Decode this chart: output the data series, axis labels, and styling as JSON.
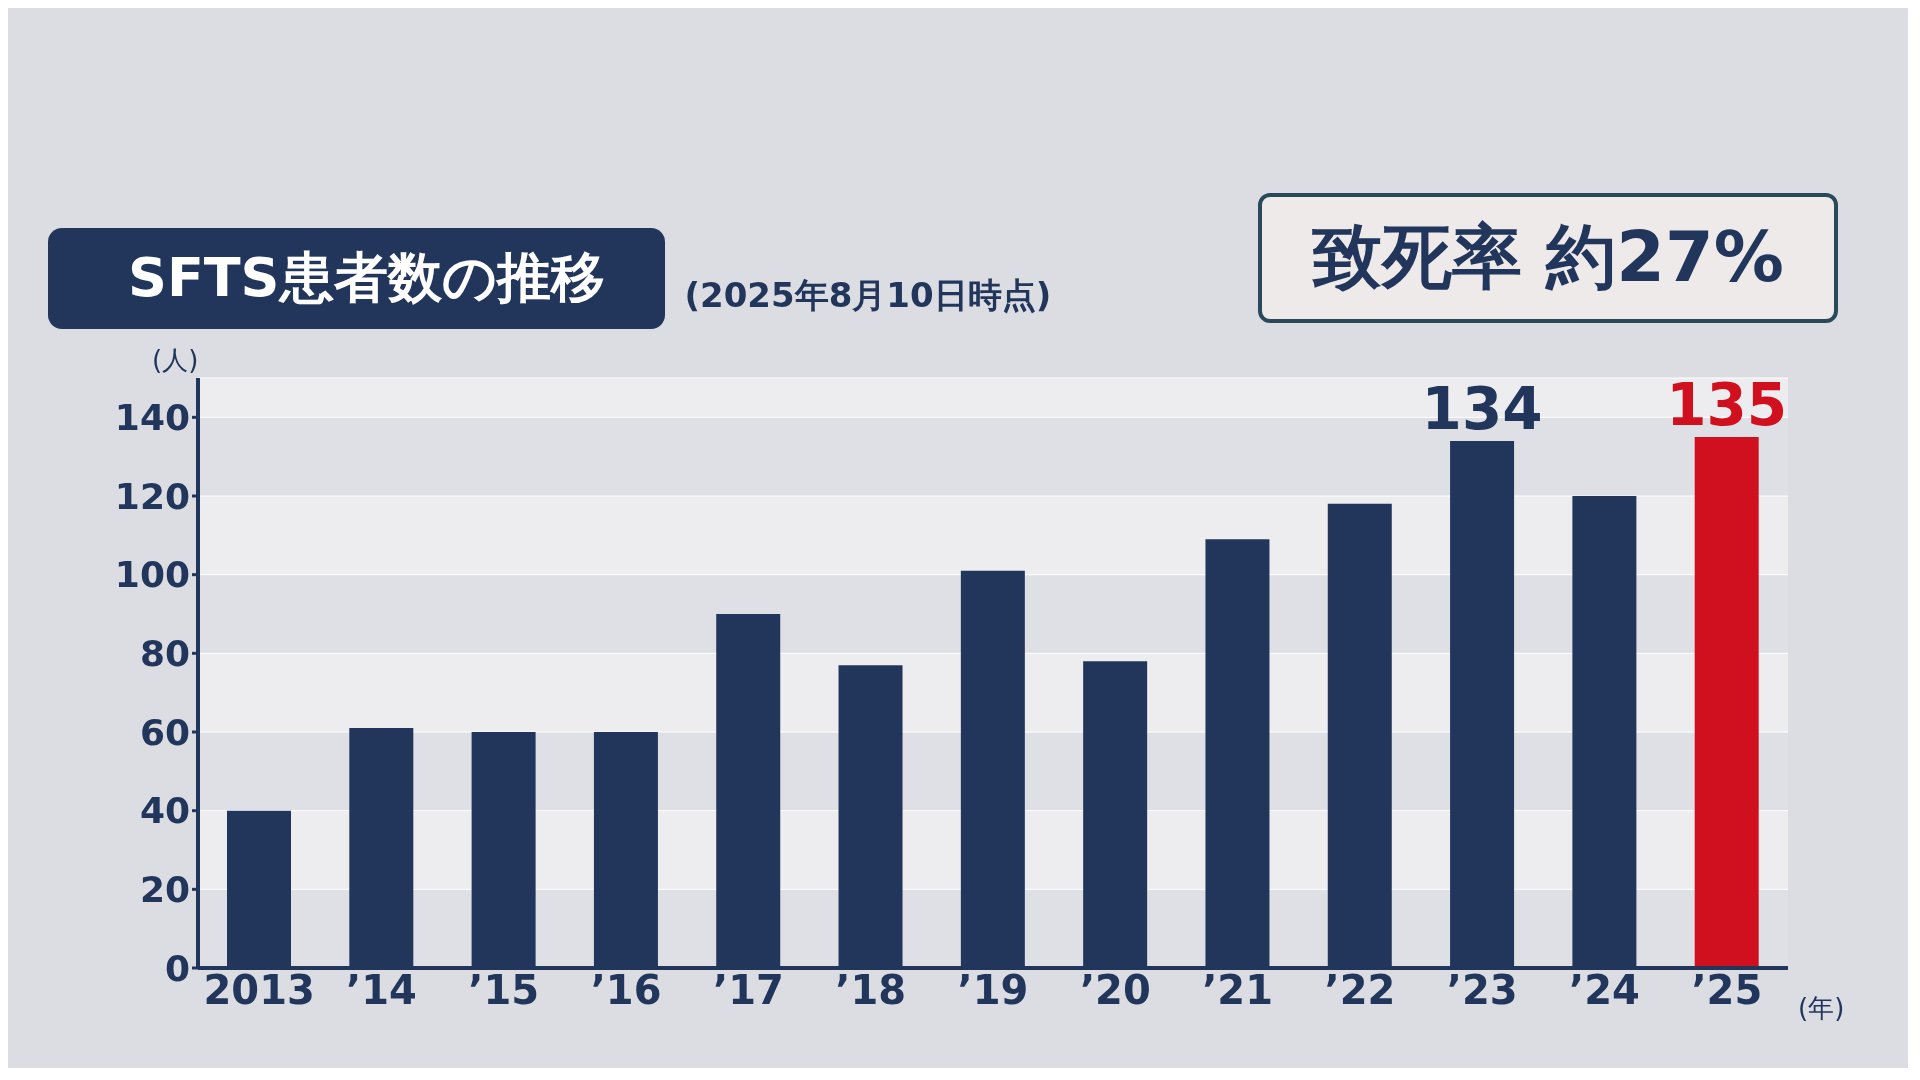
{
  "chart_data": {
    "type": "bar",
    "title": "SFTS患者数の推移",
    "subtitle": "(2025年8月10日時点)",
    "ylabel": "(人)",
    "xlabel": "(年)",
    "categories": [
      "2013",
      "’14",
      "’15",
      "’16",
      "’17",
      "’18",
      "’19",
      "’20",
      "’21",
      "’22",
      "’23",
      "’24",
      "’25"
    ],
    "values": [
      40,
      61,
      60,
      60,
      90,
      77,
      101,
      78,
      109,
      118,
      134,
      120,
      135
    ],
    "colors": [
      "#22365c",
      "#22365c",
      "#22365c",
      "#22365c",
      "#22365c",
      "#22365c",
      "#22365c",
      "#22365c",
      "#22365c",
      "#22365c",
      "#22365c",
      "#22365c",
      "#d0101f"
    ],
    "value_labels": [
      null,
      null,
      null,
      null,
      null,
      null,
      null,
      null,
      null,
      null,
      "134",
      null,
      "135"
    ],
    "ylim": [
      0,
      150
    ],
    "yticks": [
      0,
      20,
      40,
      60,
      80,
      100,
      120,
      140
    ],
    "grid": "y",
    "annotations": [
      "致死率 約27%"
    ]
  }
}
